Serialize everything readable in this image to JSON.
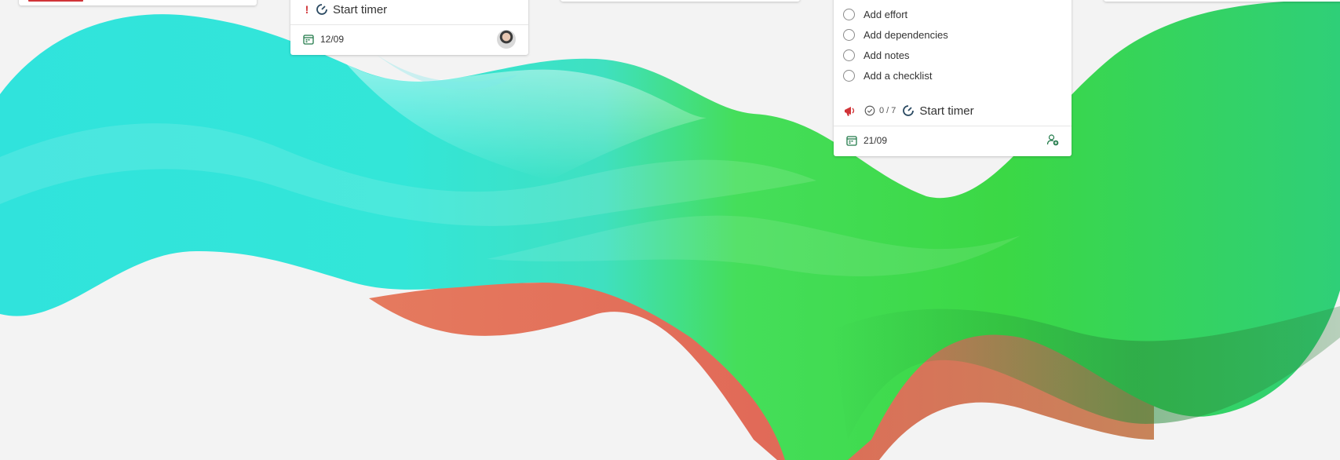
{
  "colors": {
    "wave_cyan": "#2fe0d6",
    "wave_green": "#3ed94a",
    "wave_coral": "#e2735c",
    "priority_red": "#d13438",
    "calendar_green": "#237b4b"
  },
  "card_left": {
    "badge_color": "#d13438"
  },
  "card_middle": {
    "priority_icon": "exclamation-icon",
    "timer_label": "Start timer",
    "due_date": "12/09"
  },
  "card_right": {
    "checklist_items": [
      {
        "label": "Add effort"
      },
      {
        "label": "Add dependencies"
      },
      {
        "label": "Add notes"
      },
      {
        "label": "Add a checklist"
      }
    ],
    "checklist_progress": "0 / 7",
    "timer_label": "Start timer",
    "due_date": "21/09"
  }
}
